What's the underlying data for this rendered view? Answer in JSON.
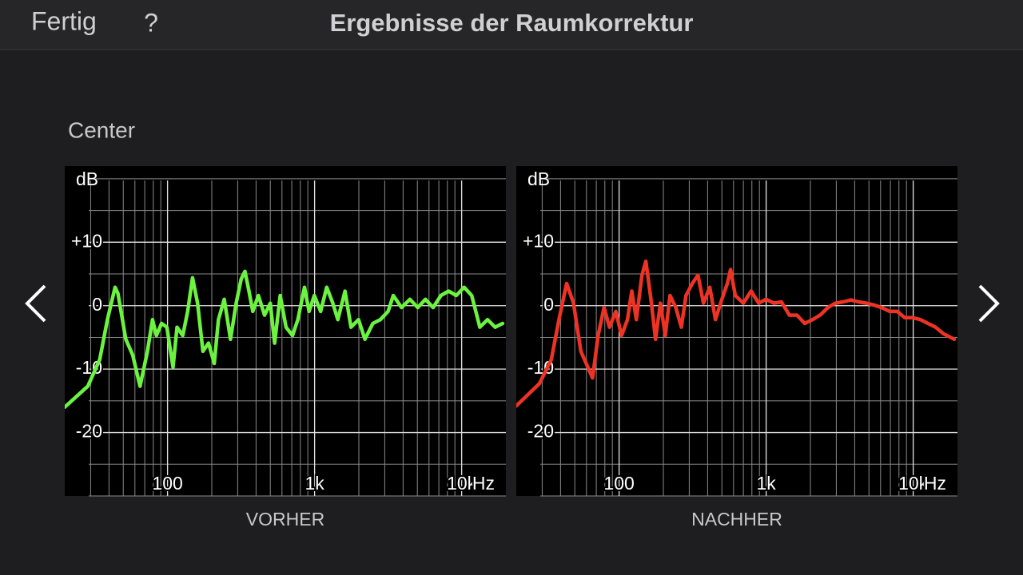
{
  "header": {
    "done": "Fertig",
    "help": "?",
    "title": "Ergebnisse der Raumkorrektur"
  },
  "section": "Center",
  "chart_data": [
    {
      "type": "line",
      "caption": "VORHER",
      "ylabel": "dB",
      "xlabel": "Hz",
      "xscale": "log",
      "xlim": [
        20,
        20000
      ],
      "ylim": [
        -30,
        22
      ],
      "xticks": [
        100,
        {
          "value": 1000,
          "label": "1k"
        },
        {
          "value": 10000,
          "label": "10k"
        }
      ],
      "yticks": [
        {
          "value": 10,
          "label": "+10"
        },
        0,
        -10,
        -20
      ],
      "grid": true,
      "x": [
        20,
        28.7,
        34.6,
        39,
        44,
        46,
        52,
        58,
        65,
        73,
        79,
        84,
        91,
        99,
        109,
        116,
        127,
        137,
        148,
        160,
        174,
        190,
        208,
        222,
        243,
        268,
        293,
        317,
        336,
        358,
        380,
        415,
        457,
        500,
        535,
        584,
        640,
        708,
        770,
        854,
        917,
        996,
        1099,
        1210,
        1330,
        1440,
        1610,
        1770,
        1990,
        2200,
        2490,
        2800,
        3160,
        3430,
        3900,
        4450,
        5030,
        5670,
        6400,
        7230,
        8150,
        9200,
        10400,
        11700,
        13300,
        15000,
        16900,
        19000
      ],
      "series": [
        {
          "color": "#6cf33f",
          "values": [
            -16,
            -12.7,
            -8.5,
            -2.2,
            2.9,
            1.9,
            -5.3,
            -7.8,
            -12.7,
            -7.2,
            -2.2,
            -4.7,
            -2.8,
            -3.4,
            -9.7,
            -3.4,
            -4.7,
            -0.9,
            4.4,
            0.4,
            -7.2,
            -5.9,
            -9.1,
            -2.2,
            1.0,
            -5.3,
            0.4,
            4.2,
            5.4,
            2.3,
            -0.9,
            1.6,
            -1.5,
            0.4,
            -5.9,
            1.6,
            -3.4,
            -4.7,
            -2.2,
            2.9,
            -0.9,
            1.6,
            -0.9,
            2.9,
            0.4,
            -2.2,
            2.3,
            -3.4,
            -2.2,
            -5.3,
            -2.8,
            -2.2,
            -0.9,
            1.6,
            -0.3,
            1.0,
            -0.3,
            1.0,
            -0.3,
            1.6,
            2.3,
            1.6,
            2.9,
            1.6,
            -3.4,
            -2.2,
            -3.4,
            -2.8
          ]
        }
      ]
    },
    {
      "type": "line",
      "caption": "NACHHER",
      "ylabel": "dB",
      "xlabel": "Hz",
      "xscale": "log",
      "xlim": [
        20,
        20000
      ],
      "ylim": [
        -30,
        22
      ],
      "xticks": [
        100,
        {
          "value": 1000,
          "label": "1k"
        },
        {
          "value": 10000,
          "label": "10k"
        }
      ],
      "yticks": [
        {
          "value": 10,
          "label": "+10"
        },
        0,
        -10,
        -20
      ],
      "grid": true,
      "x": [
        20,
        28.7,
        34.6,
        39,
        44,
        49,
        55,
        66,
        72,
        79,
        86,
        95,
        104,
        114,
        122,
        131,
        143,
        152,
        166,
        177,
        191,
        206,
        222,
        243,
        265,
        285,
        315,
        344,
        375,
        414,
        452,
        500,
        545,
        573,
        617,
        700,
        790,
        890,
        1000,
        1130,
        1270,
        1440,
        1620,
        1830,
        2070,
        2330,
        2630,
        2960,
        3340,
        3770,
        4250,
        4800,
        5400,
        6100,
        6900,
        7780,
        8770,
        9890,
        11200,
        12600,
        14200,
        16000,
        19000
      ],
      "series": [
        {
          "color": "#ee3324",
          "values": [
            -15.8,
            -12.3,
            -8.5,
            -2.2,
            3.5,
            0.4,
            -7.2,
            -11.4,
            -4.7,
            -0.3,
            -3.4,
            -0.9,
            -4.7,
            -2.2,
            2.3,
            -2.2,
            4.8,
            7.0,
            0.4,
            -5.3,
            0.4,
            -4.7,
            1.6,
            -0.3,
            -3.4,
            1.6,
            3.5,
            4.8,
            0.4,
            2.9,
            -2.2,
            1.0,
            3.5,
            5.7,
            1.6,
            0.4,
            2.3,
            0.4,
            1.0,
            0.4,
            0.6,
            -1.5,
            -1.5,
            -2.8,
            -2.2,
            -1.5,
            -0.3,
            0.4,
            0.6,
            0.9,
            0.6,
            0.4,
            0.1,
            -0.3,
            -0.9,
            -0.9,
            -1.9,
            -1.9,
            -2.2,
            -2.8,
            -3.4,
            -4.4,
            -5.3
          ]
        }
      ]
    }
  ]
}
